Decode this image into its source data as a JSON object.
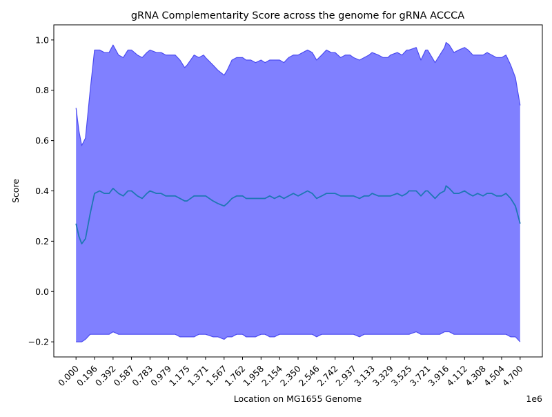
{
  "chart_data": {
    "type": "area",
    "title": "gRNA Complementarity Score across the genome for gRNA ACCCA",
    "xlabel": "Location on MG1655 Genome",
    "ylabel": "Score",
    "x_offset_text": "1e6",
    "xlim": [
      -0.235,
      4.935
    ],
    "ylim": [
      -0.26,
      1.06
    ],
    "x_ticks": [
      0.0,
      0.196,
      0.392,
      0.587,
      0.783,
      0.979,
      1.175,
      1.371,
      1.567,
      1.762,
      1.958,
      2.154,
      2.35,
      2.546,
      2.742,
      2.937,
      3.133,
      3.329,
      3.525,
      3.721,
      3.916,
      4.112,
      4.308,
      4.504,
      4.7
    ],
    "x_tick_labels": [
      "0.000",
      "0.196",
      "0.392",
      "0.587",
      "0.783",
      "0.979",
      "1.175",
      "1.371",
      "1.567",
      "1.762",
      "1.958",
      "2.154",
      "2.350",
      "2.546",
      "2.742",
      "2.937",
      "3.133",
      "3.329",
      "3.525",
      "3.721",
      "3.916",
      "4.112",
      "4.308",
      "4.504",
      "4.700"
    ],
    "y_ticks": [
      -0.2,
      0.0,
      0.2,
      0.4,
      0.6,
      0.8,
      1.0
    ],
    "y_tick_labels": [
      "−0.2",
      "0.0",
      "0.2",
      "0.4",
      "0.6",
      "0.8",
      "1.0"
    ],
    "x": [
      0.0,
      0.03,
      0.06,
      0.1,
      0.15,
      0.196,
      0.25,
      0.3,
      0.35,
      0.392,
      0.45,
      0.5,
      0.55,
      0.587,
      0.65,
      0.7,
      0.75,
      0.783,
      0.85,
      0.9,
      0.95,
      0.979,
      1.05,
      1.1,
      1.15,
      1.175,
      1.25,
      1.3,
      1.35,
      1.371,
      1.45,
      1.5,
      1.567,
      1.6,
      1.65,
      1.7,
      1.762,
      1.8,
      1.85,
      1.9,
      1.958,
      2.0,
      2.05,
      2.1,
      2.154,
      2.2,
      2.25,
      2.3,
      2.35,
      2.4,
      2.45,
      2.5,
      2.546,
      2.6,
      2.65,
      2.7,
      2.742,
      2.8,
      2.85,
      2.9,
      2.937,
      3.0,
      3.05,
      3.1,
      3.133,
      3.2,
      3.25,
      3.3,
      3.329,
      3.4,
      3.45,
      3.5,
      3.525,
      3.6,
      3.65,
      3.7,
      3.721,
      3.8,
      3.85,
      3.9,
      3.916,
      3.95,
      4.0,
      4.05,
      4.112,
      4.15,
      4.2,
      4.25,
      4.308,
      4.35,
      4.4,
      4.45,
      4.504,
      4.55,
      4.6,
      4.65,
      4.7
    ],
    "series": [
      {
        "role": "upper",
        "values": [
          0.73,
          0.64,
          0.58,
          0.61,
          0.8,
          0.96,
          0.96,
          0.95,
          0.95,
          0.98,
          0.94,
          0.93,
          0.96,
          0.96,
          0.94,
          0.93,
          0.95,
          0.96,
          0.95,
          0.95,
          0.94,
          0.94,
          0.94,
          0.92,
          0.89,
          0.9,
          0.94,
          0.93,
          0.94,
          0.93,
          0.9,
          0.88,
          0.86,
          0.88,
          0.92,
          0.93,
          0.93,
          0.92,
          0.92,
          0.91,
          0.92,
          0.91,
          0.92,
          0.92,
          0.92,
          0.91,
          0.93,
          0.94,
          0.94,
          0.95,
          0.96,
          0.95,
          0.92,
          0.94,
          0.96,
          0.95,
          0.95,
          0.93,
          0.94,
          0.94,
          0.93,
          0.92,
          0.93,
          0.94,
          0.95,
          0.94,
          0.93,
          0.93,
          0.94,
          0.95,
          0.94,
          0.96,
          0.96,
          0.97,
          0.92,
          0.96,
          0.96,
          0.91,
          0.94,
          0.97,
          0.99,
          0.98,
          0.95,
          0.96,
          0.97,
          0.96,
          0.94,
          0.94,
          0.94,
          0.95,
          0.94,
          0.93,
          0.93,
          0.94,
          0.9,
          0.85,
          0.74
        ]
      },
      {
        "role": "mean",
        "values": [
          0.27,
          0.22,
          0.19,
          0.21,
          0.31,
          0.39,
          0.4,
          0.39,
          0.39,
          0.41,
          0.39,
          0.38,
          0.4,
          0.4,
          0.38,
          0.37,
          0.39,
          0.4,
          0.39,
          0.39,
          0.38,
          0.38,
          0.38,
          0.37,
          0.36,
          0.36,
          0.38,
          0.38,
          0.38,
          0.38,
          0.36,
          0.35,
          0.34,
          0.35,
          0.37,
          0.38,
          0.38,
          0.37,
          0.37,
          0.37,
          0.37,
          0.37,
          0.38,
          0.37,
          0.38,
          0.37,
          0.38,
          0.39,
          0.38,
          0.39,
          0.4,
          0.39,
          0.37,
          0.38,
          0.39,
          0.39,
          0.39,
          0.38,
          0.38,
          0.38,
          0.38,
          0.37,
          0.38,
          0.38,
          0.39,
          0.38,
          0.38,
          0.38,
          0.38,
          0.39,
          0.38,
          0.39,
          0.4,
          0.4,
          0.38,
          0.4,
          0.4,
          0.37,
          0.39,
          0.4,
          0.42,
          0.41,
          0.39,
          0.39,
          0.4,
          0.39,
          0.38,
          0.39,
          0.38,
          0.39,
          0.39,
          0.38,
          0.38,
          0.39,
          0.37,
          0.34,
          0.27
        ]
      },
      {
        "role": "lower",
        "values": [
          -0.2,
          -0.2,
          -0.2,
          -0.19,
          -0.17,
          -0.17,
          -0.17,
          -0.17,
          -0.17,
          -0.16,
          -0.17,
          -0.17,
          -0.17,
          -0.17,
          -0.17,
          -0.17,
          -0.17,
          -0.17,
          -0.17,
          -0.17,
          -0.17,
          -0.17,
          -0.17,
          -0.18,
          -0.18,
          -0.18,
          -0.18,
          -0.17,
          -0.17,
          -0.17,
          -0.18,
          -0.18,
          -0.19,
          -0.18,
          -0.18,
          -0.17,
          -0.17,
          -0.18,
          -0.18,
          -0.18,
          -0.17,
          -0.17,
          -0.18,
          -0.18,
          -0.17,
          -0.17,
          -0.17,
          -0.17,
          -0.17,
          -0.17,
          -0.17,
          -0.17,
          -0.18,
          -0.17,
          -0.17,
          -0.17,
          -0.17,
          -0.17,
          -0.17,
          -0.17,
          -0.17,
          -0.18,
          -0.17,
          -0.17,
          -0.17,
          -0.17,
          -0.17,
          -0.17,
          -0.17,
          -0.17,
          -0.17,
          -0.17,
          -0.17,
          -0.16,
          -0.17,
          -0.17,
          -0.17,
          -0.17,
          -0.17,
          -0.16,
          -0.16,
          -0.16,
          -0.17,
          -0.17,
          -0.17,
          -0.17,
          -0.17,
          -0.17,
          -0.17,
          -0.17,
          -0.17,
          -0.17,
          -0.17,
          -0.17,
          -0.18,
          -0.18,
          -0.2
        ]
      }
    ],
    "colors": {
      "band_fill": "#8080ff",
      "band_edge": "#4b4bf0",
      "mean_line": "#1f77b4",
      "axes": "#000000"
    },
    "grid": false,
    "legend": "none"
  }
}
